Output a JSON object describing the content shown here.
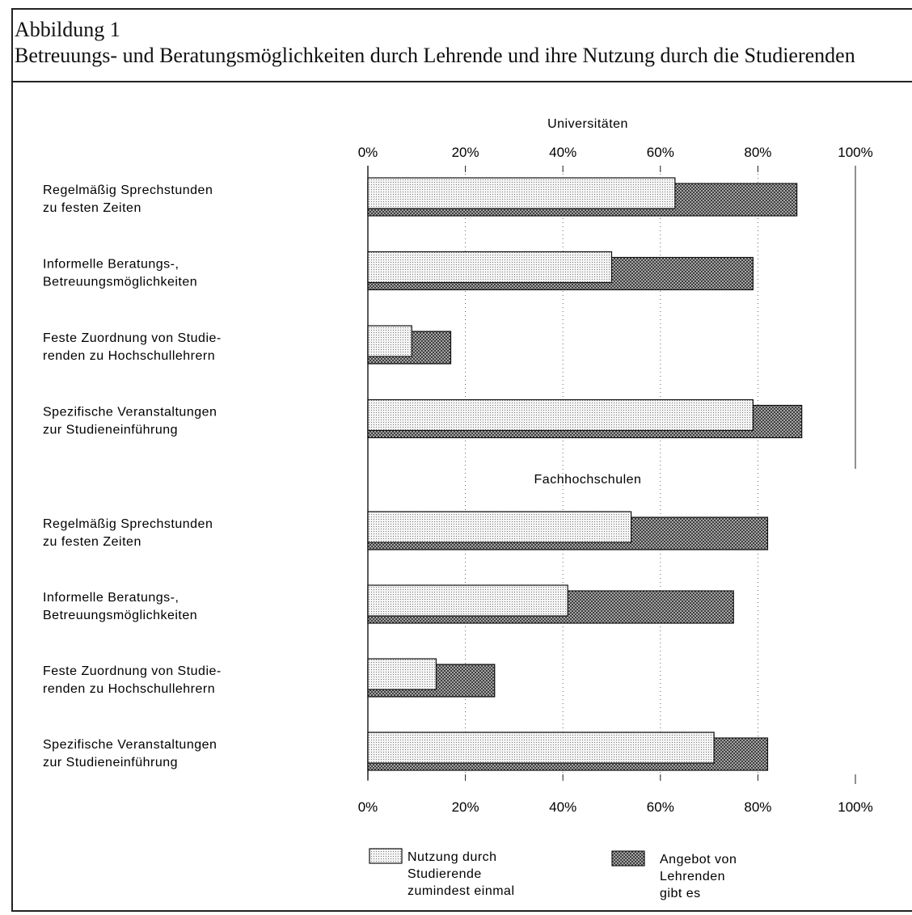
{
  "figure": {
    "label": "Abbildung 1",
    "title": "Betreuungs- und Beratungsmöglichkeiten durch Lehrende und ihre Nutzung durch die Studierenden"
  },
  "chart_data": {
    "type": "bar",
    "orientation": "horizontal",
    "xlim": [
      0,
      100
    ],
    "x_ticks": [
      "0%",
      "20%",
      "40%",
      "60%",
      "80%",
      "100%"
    ],
    "grid": "vertical dotted",
    "legend_position": "bottom",
    "groups": [
      {
        "name": "Universitäten",
        "categories": [
          [
            "Regelmäßig Sprechstunden",
            "zu festen Zeiten"
          ],
          [
            "Informelle Beratungs-,",
            "Betreuungsmöglichkeiten"
          ],
          [
            "Feste Zuordnung von Studie-",
            "renden zu Hochschullehrern"
          ],
          [
            "Spezifische Veranstaltungen",
            "zur Studieneinführung"
          ]
        ],
        "series": [
          {
            "name": "Nutzung durch Studierende zumindest einmal",
            "values": [
              63,
              50,
              9,
              79
            ]
          },
          {
            "name": "Angebot von Lehrenden gibt es",
            "values": [
              88,
              79,
              17,
              89
            ]
          }
        ]
      },
      {
        "name": "Fachhochschulen",
        "categories": [
          [
            "Regelmäßig Sprechstunden",
            "zu festen Zeiten"
          ],
          [
            "Informelle Beratungs-,",
            "Betreuungsmöglichkeiten"
          ],
          [
            "Feste Zuordnung von Studie-",
            "renden zu Hochschullehrern"
          ],
          [
            "Spezifische Veranstaltungen",
            "zur Studieneinführung"
          ]
        ],
        "series": [
          {
            "name": "Nutzung durch Studierende zumindest einmal",
            "values": [
              54,
              41,
              14,
              71
            ]
          },
          {
            "name": "Angebot von Lehrenden gibt es",
            "values": [
              82,
              75,
              26,
              82
            ]
          }
        ]
      }
    ],
    "legend": [
      {
        "lines": [
          "Nutzung durch",
          "Studierende",
          "zumindest einmal"
        ],
        "pattern": "light-dotted"
      },
      {
        "lines": [
          "Angebot von",
          "Lehrenden",
          "gibt es"
        ],
        "pattern": "dark-crosshatch"
      }
    ]
  }
}
